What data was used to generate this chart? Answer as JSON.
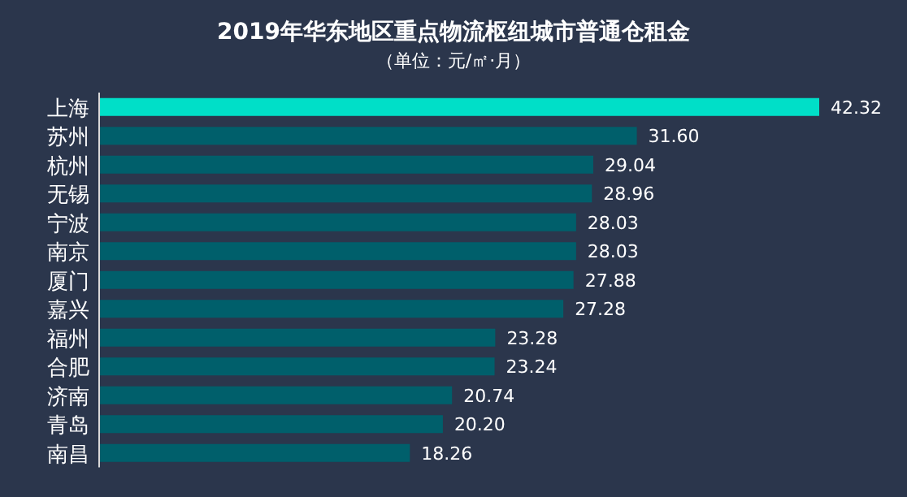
{
  "chart_data": {
    "type": "bar",
    "orientation": "horizontal",
    "title": "2019年华东地区重点物流枢纽城市普通仓租金",
    "subtitle": "（单位：元/㎡·月）",
    "categories": [
      "上海",
      "苏州",
      "杭州",
      "无锡",
      "宁波",
      "南京",
      "厦门",
      "嘉兴",
      "福州",
      "合肥",
      "济南",
      "青岛",
      "南昌"
    ],
    "values": [
      42.32,
      31.6,
      29.04,
      28.96,
      28.03,
      28.03,
      27.88,
      27.28,
      23.28,
      23.24,
      20.74,
      20.2,
      18.26
    ],
    "value_labels": [
      "42.32",
      "31.60",
      "29.04",
      "28.96",
      "28.03",
      "28.03",
      "27.88",
      "27.28",
      "23.28",
      "23.24",
      "20.74",
      "20.20",
      "18.26"
    ],
    "colors": [
      "#00dfc8",
      "#005f6b",
      "#005f6b",
      "#005f6b",
      "#005f6b",
      "#005f6b",
      "#005f6b",
      "#005f6b",
      "#005f6b",
      "#005f6b",
      "#005f6b",
      "#005f6b",
      "#005f6b"
    ],
    "xlim": [
      0,
      42.32
    ],
    "tick_labels": "y"
  }
}
